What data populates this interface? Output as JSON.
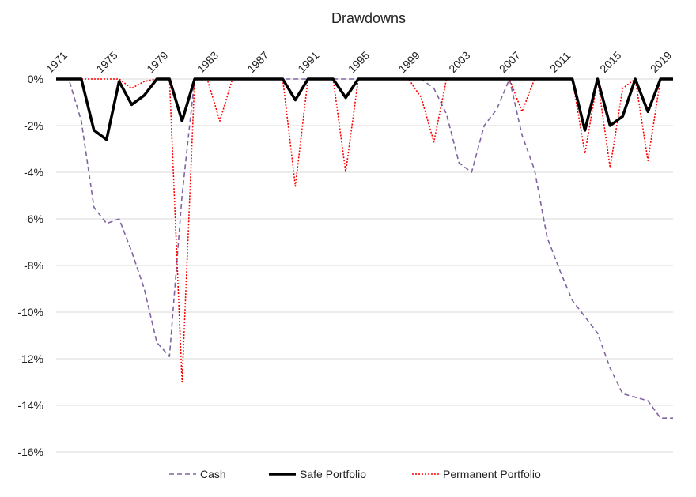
{
  "chart_data": {
    "type": "line",
    "title": "Drawdowns",
    "xlabel": "",
    "ylabel": "",
    "x": [
      1971,
      1972,
      1973,
      1974,
      1975,
      1976,
      1977,
      1978,
      1979,
      1980,
      1981,
      1982,
      1983,
      1984,
      1985,
      1986,
      1987,
      1988,
      1989,
      1990,
      1991,
      1992,
      1993,
      1994,
      1995,
      1996,
      1997,
      1998,
      1999,
      2000,
      2001,
      2002,
      2003,
      2004,
      2005,
      2006,
      2007,
      2008,
      2009,
      2010,
      2011,
      2012,
      2013,
      2014,
      2015,
      2016,
      2017,
      2018,
      2019,
      2020
    ],
    "x_tick_labels": [
      "1971",
      "1975",
      "1979",
      "1983",
      "1987",
      "1991",
      "1995",
      "1999",
      "2003",
      "2007",
      "2011",
      "2015",
      "2019"
    ],
    "x_tick_years": [
      1971,
      1975,
      1979,
      1983,
      1987,
      1991,
      1995,
      1999,
      2003,
      2007,
      2011,
      2015,
      2019
    ],
    "x_axis_position": "top",
    "ylim": [
      -16,
      0
    ],
    "y_ticks": [
      0,
      -2,
      -4,
      -6,
      -8,
      -10,
      -12,
      -14,
      -16
    ],
    "y_tick_labels": [
      "0%",
      "-2%",
      "-4%",
      "-6%",
      "-8%",
      "-10%",
      "-12%",
      "-14%",
      "-16%"
    ],
    "grid": true,
    "legend_position": "bottom",
    "series": [
      {
        "name": "Cash",
        "color": "#8064a2",
        "style": "dashed",
        "values": [
          0,
          0,
          -1.8,
          -5.5,
          -6.2,
          -6.0,
          -7.4,
          -9.0,
          -11.3,
          -11.9,
          -5.0,
          0,
          0,
          0,
          0,
          0,
          0,
          0,
          0,
          0,
          0,
          0,
          0,
          0,
          0,
          0,
          0,
          0,
          0,
          0,
          -0.4,
          -1.5,
          -3.6,
          -4.0,
          -2.0,
          -1.3,
          0,
          -2.4,
          -3.9,
          -6.8,
          -8.2,
          -9.5,
          -10.2,
          -10.9,
          -12.4,
          -13.5,
          -13.65,
          -13.8,
          -14.55,
          -14.55
        ]
      },
      {
        "name": "Safe Portfolio",
        "color": "#000000",
        "style": "solid",
        "values": [
          0,
          0,
          0,
          -2.2,
          -2.6,
          -0.1,
          -1.1,
          -0.7,
          0,
          0,
          -1.8,
          0,
          0,
          0,
          0,
          0,
          0,
          0,
          0,
          -0.9,
          0,
          0,
          0,
          -0.8,
          0,
          0,
          0,
          0,
          0,
          0,
          0,
          0,
          0,
          0,
          0,
          0,
          0,
          0,
          0,
          0,
          0,
          0,
          -2.2,
          0,
          -2.0,
          -1.6,
          0,
          -1.4,
          0,
          0
        ]
      },
      {
        "name": "Permanent Portfolio",
        "color": "#ff0000",
        "style": "dotted",
        "values": [
          0,
          0,
          0,
          0,
          0,
          0,
          -0.4,
          -0.1,
          0,
          0,
          -13.0,
          0,
          0,
          -1.8,
          0,
          0,
          0,
          0,
          0,
          -4.6,
          0,
          0,
          0,
          -4.0,
          0,
          0,
          0,
          0,
          0,
          -0.8,
          -2.7,
          0,
          0,
          0,
          0,
          0,
          0,
          -1.4,
          0,
          0,
          0,
          0,
          -3.2,
          0,
          -3.8,
          -0.4,
          0,
          -3.5,
          0,
          0
        ]
      }
    ]
  }
}
